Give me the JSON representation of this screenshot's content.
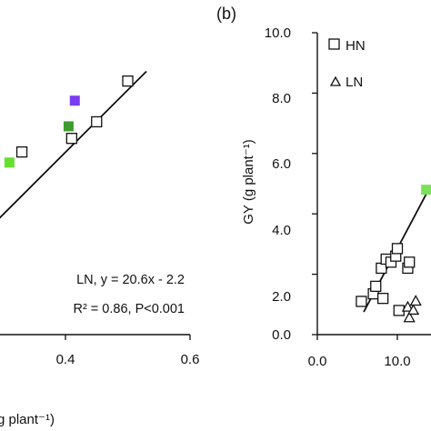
{
  "chart_data": [
    {
      "type": "scatter",
      "panel_label": "",
      "title": "",
      "xlabel": "g plant⁻¹)",
      "ylabel": "",
      "xlim": [
        0.2,
        0.6
      ],
      "ylim": [
        0.0,
        10.0
      ],
      "x_ticks": [
        0.2,
        0.4,
        0.6
      ],
      "x_tick_labels": [
        "",
        "0.4",
        "0.6"
      ],
      "grid": false,
      "series": [
        {
          "marker": "square-open",
          "points": [
            {
              "x": 0.5,
              "y": 8.4
            },
            {
              "x": 0.45,
              "y": 7.05
            },
            {
              "x": 0.41,
              "y": 6.5
            },
            {
              "x": 0.33,
              "y": 6.05
            }
          ]
        },
        {
          "marker": "square-filled",
          "points": [
            {
              "x": 0.415,
              "y": 7.75,
              "color": "#7a3cf0"
            },
            {
              "x": 0.405,
              "y": 6.9,
              "color": "#3f9b2f"
            },
            {
              "x": 0.31,
              "y": 5.7,
              "color": "#66e02e"
            }
          ]
        }
      ],
      "fit_line": {
        "x": [
          0.23,
          0.53
        ],
        "y": [
          2.54,
          8.72
        ]
      },
      "annotation": {
        "line1": "LN, y = 20.6x - 2.2",
        "line2": "R² = 0.86, P<0.001"
      },
      "colors": {
        "axis": "#111111",
        "marker_stroke": "#111111"
      }
    },
    {
      "type": "scatter",
      "panel_label": "(b)",
      "title": "",
      "xlabel": "",
      "ylabel": "GY (g plant⁻¹)",
      "xlim": [
        0.0,
        20.0
      ],
      "ylim": [
        0.0,
        10.0
      ],
      "y_ticks": [
        0.0,
        2.0,
        4.0,
        6.0,
        8.0,
        10.0
      ],
      "y_tick_labels": [
        "0.0",
        "2.0",
        "4.0",
        "6.0",
        "8.0",
        "10.0"
      ],
      "x_ticks": [
        0.0,
        10.0
      ],
      "x_tick_labels": [
        "0.0",
        "10.0"
      ],
      "grid": false,
      "legend": {
        "position": "top-left",
        "entries": [
          {
            "label": "HN",
            "marker": "square-open"
          },
          {
            "label": "LN",
            "marker": "triangle-open"
          }
        ]
      },
      "series": [
        {
          "name": "HN",
          "marker": "square-open",
          "points": [
            {
              "x": 5.5,
              "y": 1.1
            },
            {
              "x": 7.0,
              "y": 1.35
            },
            {
              "x": 7.3,
              "y": 1.6
            },
            {
              "x": 8.0,
              "y": 2.2
            },
            {
              "x": 8.2,
              "y": 1.2
            },
            {
              "x": 8.6,
              "y": 2.5
            },
            {
              "x": 9.2,
              "y": 2.4
            },
            {
              "x": 9.8,
              "y": 2.6
            },
            {
              "x": 10.0,
              "y": 2.85
            },
            {
              "x": 10.2,
              "y": 0.8
            },
            {
              "x": 11.3,
              "y": 2.2
            },
            {
              "x": 11.5,
              "y": 2.4
            }
          ]
        },
        {
          "name": "LN",
          "marker": "triangle-open",
          "points": [
            {
              "x": 11.3,
              "y": 0.9
            },
            {
              "x": 11.5,
              "y": 0.55
            },
            {
              "x": 12.0,
              "y": 0.8
            },
            {
              "x": 12.3,
              "y": 1.1
            }
          ]
        },
        {
          "marker": "square-filled",
          "points": [
            {
              "x": 13.6,
              "y": 4.8,
              "color": "#7be05a"
            }
          ]
        }
      ],
      "fit_line": {
        "x": [
          5.8,
          13.7
        ],
        "y": [
          0.75,
          4.7
        ]
      },
      "colors": {
        "axis": "#111111",
        "marker_stroke": "#111111"
      }
    }
  ]
}
